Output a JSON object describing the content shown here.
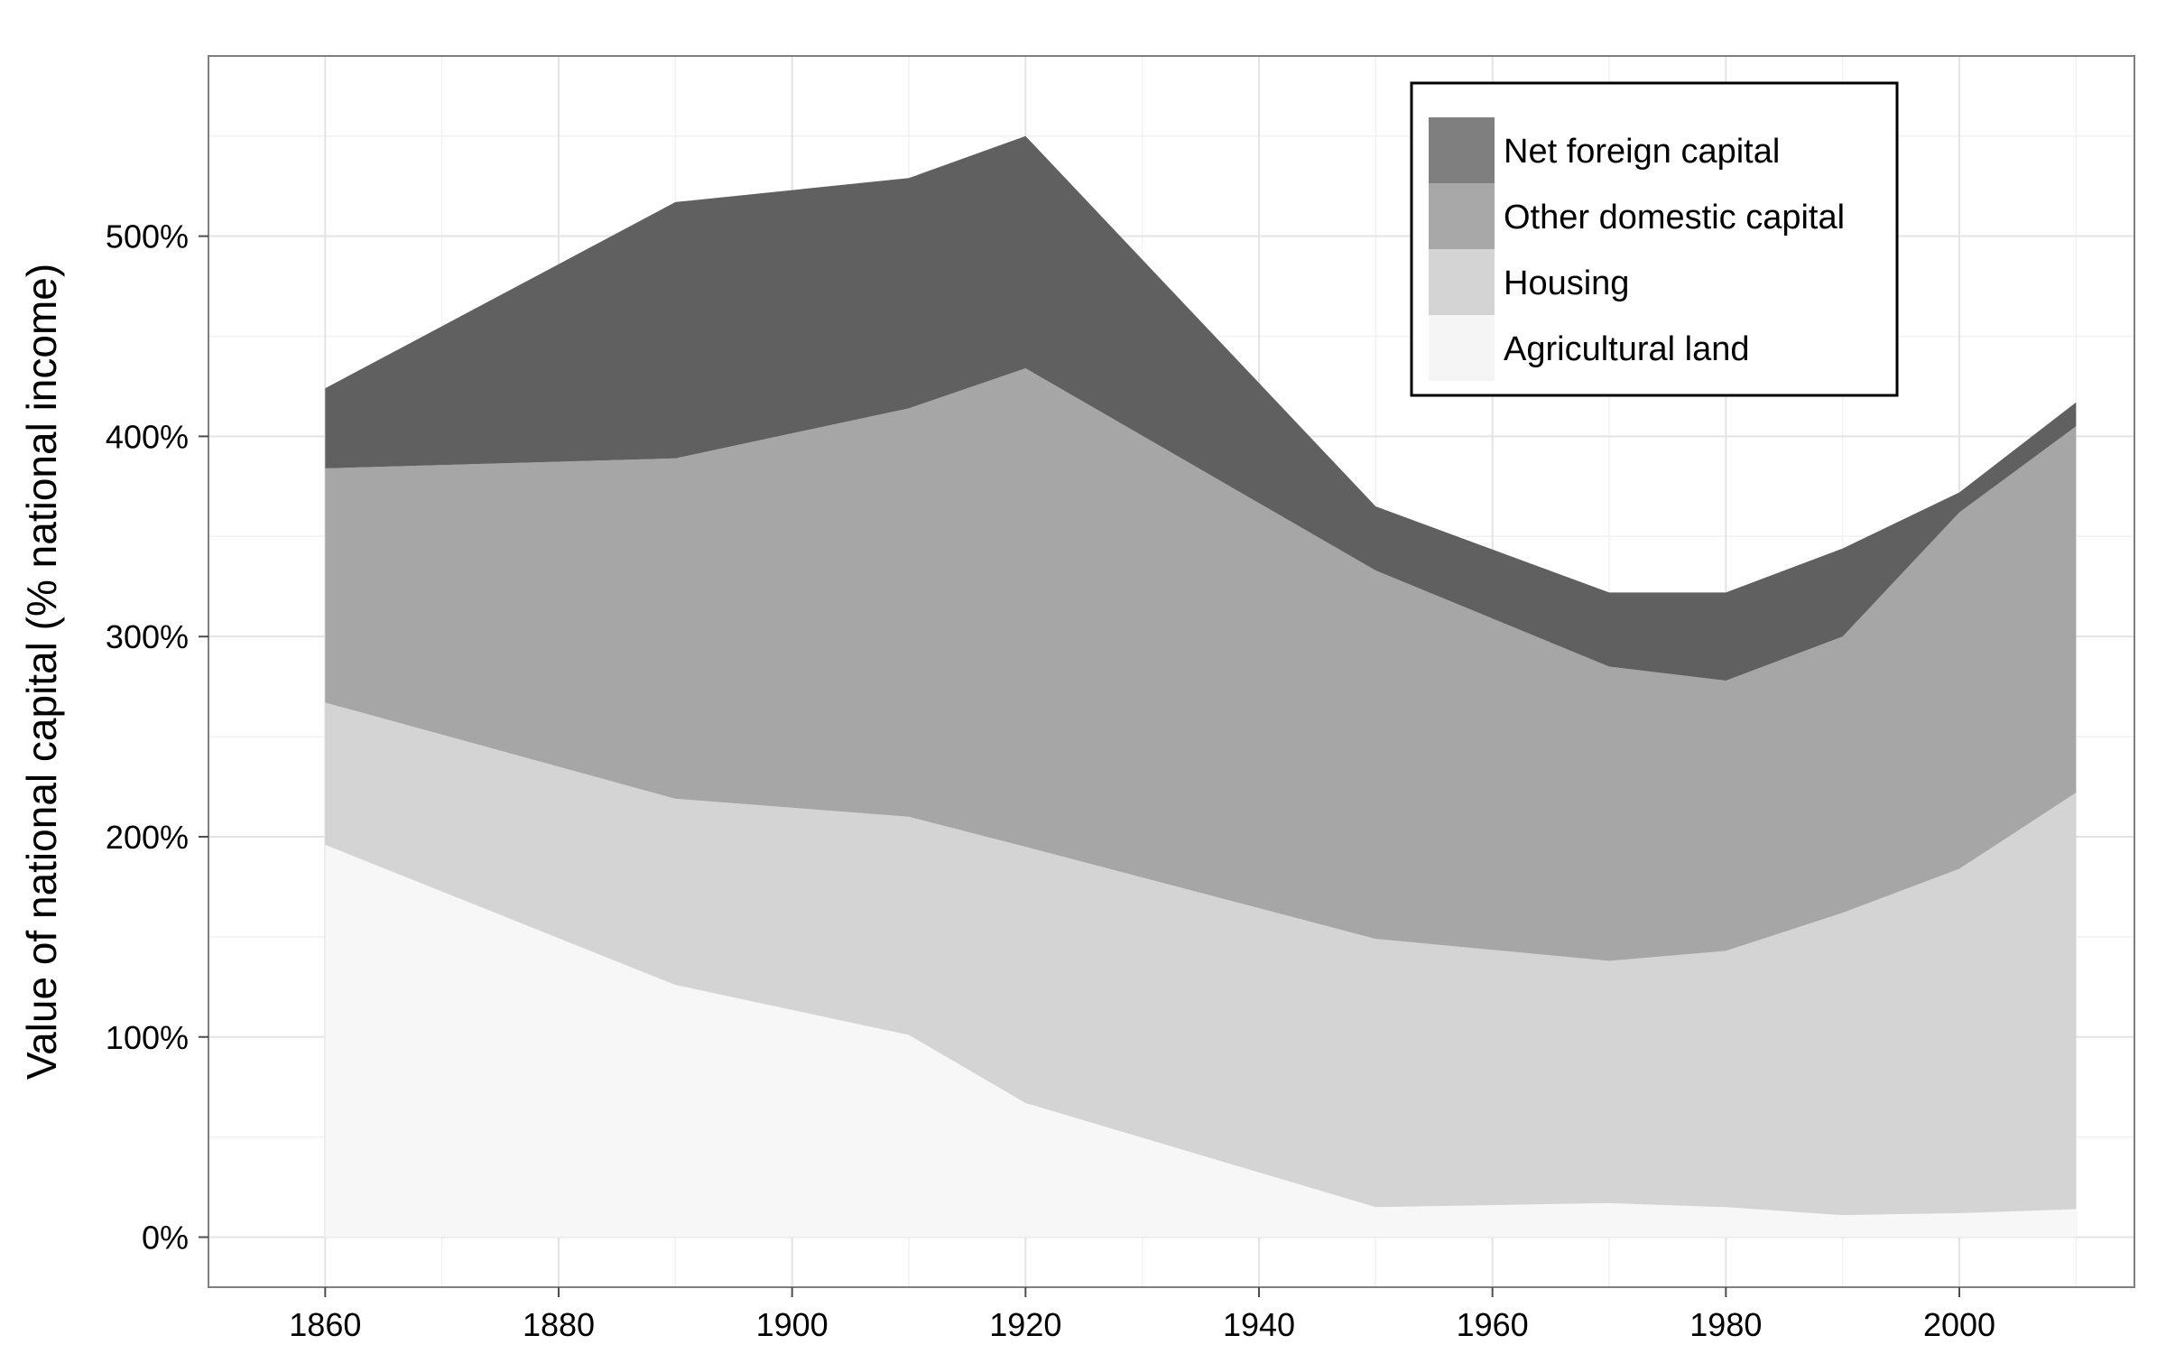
{
  "chart_data": {
    "type": "area",
    "stacked": true,
    "title": "",
    "xlabel": "",
    "ylabel": "Value of national capital (% national income)",
    "x": [
      1860,
      1890,
      1910,
      1920,
      1950,
      1970,
      1980,
      1990,
      2000,
      2010
    ],
    "xlim": [
      1850,
      2015
    ],
    "ylim": [
      -25,
      590
    ],
    "x_ticks": [
      1860,
      1880,
      1900,
      1920,
      1940,
      1960,
      1980,
      2000
    ],
    "x_tick_labels": [
      "1860",
      "1880",
      "1900",
      "1920",
      "1940",
      "1960",
      "1980",
      "2000"
    ],
    "y_ticks": [
      0,
      100,
      200,
      300,
      400,
      500
    ],
    "y_tick_labels": [
      "0%",
      "100%",
      "200%",
      "300%",
      "400%",
      "500%"
    ],
    "grid": true,
    "legend_position": "top-right",
    "series": [
      {
        "name": "Agricultural land",
        "color": "#f7f7f7",
        "values": [
          196,
          126,
          101,
          67,
          15,
          17,
          15,
          11,
          12,
          14
        ]
      },
      {
        "name": "Housing",
        "color": "#d4d4d4",
        "values": [
          71,
          93,
          109,
          128,
          134,
          121,
          128,
          151,
          172,
          208
        ]
      },
      {
        "name": "Other domestic capital",
        "color": "#a6a6a6",
        "values": [
          117,
          170,
          204,
          239,
          184,
          147,
          135,
          138,
          178,
          183
        ]
      },
      {
        "name": "Net foreign capital",
        "color": "#606060",
        "values": [
          40,
          128,
          115,
          116,
          32,
          37,
          44,
          44,
          10,
          12
        ]
      }
    ],
    "legend_order": [
      "Net foreign capital",
      "Other domestic capital",
      "Housing",
      "Agricultural land"
    ],
    "legend_key_colors": {
      "Net foreign capital": "#7f7f7f",
      "Other domestic capital": "#a8a8a8",
      "Housing": "#d4d4d4",
      "Agricultural land": "#f5f5f5"
    },
    "colors": {
      "panel_border": "#7f7f7f",
      "grid_major": "#e3e3e3",
      "grid_minor": "#f1f1f1",
      "axis_tick": "#4d4d4d",
      "legend_border": "#000000"
    }
  }
}
